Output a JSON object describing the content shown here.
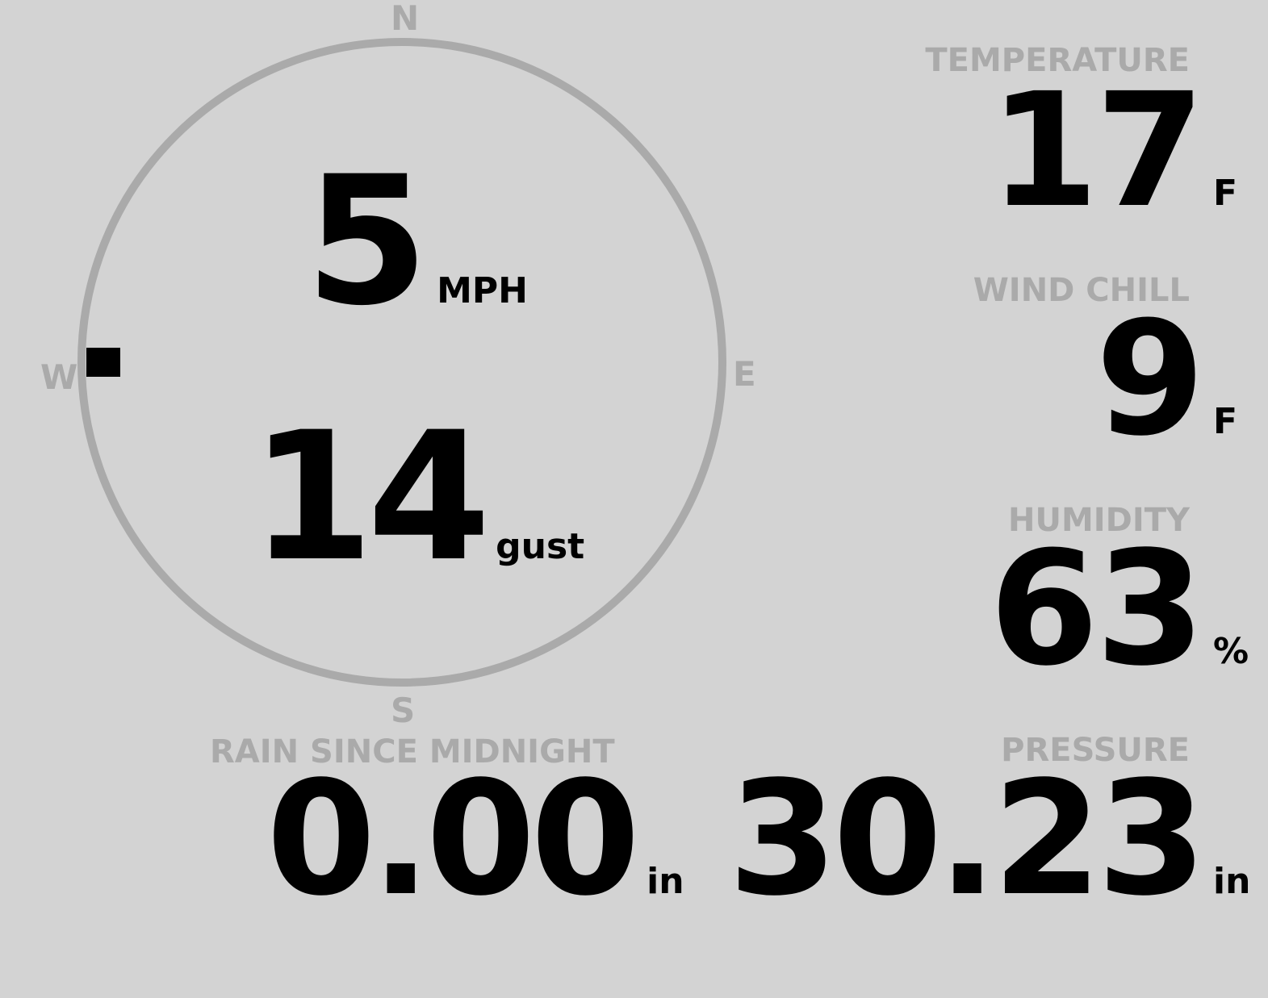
{
  "wind": {
    "speed": "5",
    "speed_unit": "MPH",
    "gust": "14",
    "gust_label": "gust",
    "direction_degrees": 270,
    "cardinals": {
      "n": "N",
      "e": "E",
      "s": "S",
      "w": "W"
    }
  },
  "temperature": {
    "label": "TEMPERATURE",
    "value": "17",
    "unit": "F"
  },
  "wind_chill": {
    "label": "WIND CHILL",
    "value": "9",
    "unit": "F"
  },
  "humidity": {
    "label": "HUMIDITY",
    "value": "63",
    "unit": "%"
  },
  "rain": {
    "label": "RAIN SINCE MIDNIGHT",
    "value": "0.00",
    "unit": "in"
  },
  "pressure": {
    "label": "PRESSURE",
    "value": "30.23",
    "unit": "in"
  },
  "colors": {
    "background": "#d3d3d3",
    "ring": "#aaaaaa",
    "label": "#aaaaaa",
    "value": "#000000"
  }
}
